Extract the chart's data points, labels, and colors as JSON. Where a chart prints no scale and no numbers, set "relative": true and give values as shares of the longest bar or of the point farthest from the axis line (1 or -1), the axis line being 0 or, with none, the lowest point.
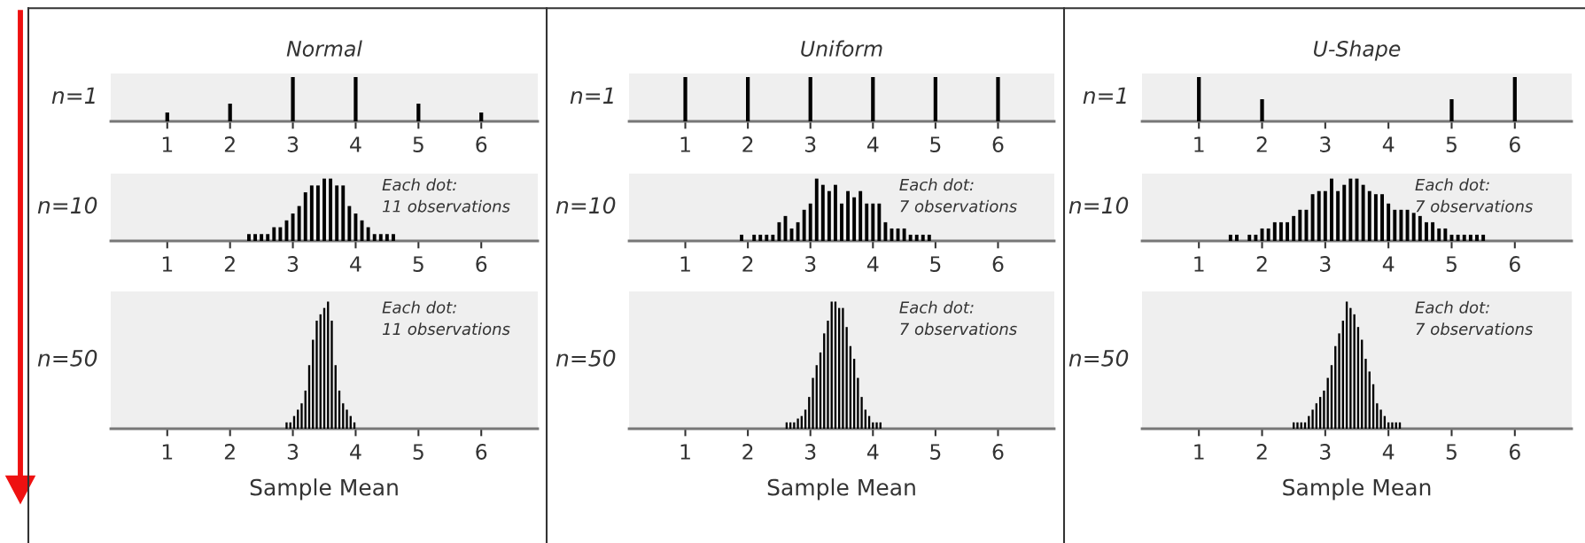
{
  "chart_data": [
    {
      "type": "bar",
      "title": "Normal",
      "ylabel": "n=1",
      "relative": true,
      "color": "#000000",
      "xlim": [
        0.1,
        6.9
      ],
      "xticks": [
        1,
        2,
        3,
        4,
        5,
        6
      ],
      "x": [
        1,
        2,
        3,
        4,
        5,
        6
      ],
      "values": [
        0.2,
        0.4,
        1,
        1,
        0.4,
        0.2
      ]
    },
    {
      "type": "bar",
      "title": "Uniform",
      "ylabel": "n=1",
      "relative": true,
      "color": "#000000",
      "xlim": [
        0.1,
        6.9
      ],
      "xticks": [
        1,
        2,
        3,
        4,
        5,
        6
      ],
      "x": [
        1,
        2,
        3,
        4,
        5,
        6
      ],
      "values": [
        1,
        1,
        1,
        1,
        1,
        1
      ]
    },
    {
      "type": "bar",
      "title": "U-Shape",
      "ylabel": "n=1",
      "relative": true,
      "color": "#000000",
      "xlim": [
        0.1,
        6.9
      ],
      "xticks": [
        1,
        2,
        3,
        4,
        5,
        6
      ],
      "x": [
        1,
        2,
        3,
        4,
        5,
        6
      ],
      "values": [
        1,
        0.5,
        0,
        0,
        0.5,
        1
      ]
    },
    {
      "type": "bar",
      "ylabel": "n=10",
      "relative": true,
      "color": "#000000",
      "xlim": [
        0.1,
        6.9
      ],
      "xticks": [
        1,
        2,
        3,
        4,
        5,
        6
      ],
      "annotations": [
        "Each dot:\n11 observations"
      ],
      "x": [
        2.3,
        2.4,
        2.5,
        2.6,
        2.7,
        2.8,
        2.9,
        3.0,
        3.1,
        3.2,
        3.3,
        3.4,
        3.5,
        3.6,
        3.7,
        3.8,
        3.9,
        4.0,
        4.1,
        4.2,
        4.3,
        4.4,
        4.5,
        4.6
      ],
      "values": [
        0.11,
        0.11,
        0.11,
        0.11,
        0.22,
        0.22,
        0.33,
        0.44,
        0.56,
        0.78,
        0.89,
        0.89,
        1,
        1,
        0.89,
        0.89,
        0.56,
        0.44,
        0.33,
        0.22,
        0.11,
        0.11,
        0.11,
        0.11
      ]
    },
    {
      "type": "bar",
      "ylabel": "n=10",
      "relative": true,
      "color": "#000000",
      "xlim": [
        0.1,
        6.9
      ],
      "xticks": [
        1,
        2,
        3,
        4,
        5,
        6
      ],
      "annotations": [
        "Each dot:\n7 observations"
      ],
      "x": [
        1.9,
        2.1,
        2.2,
        2.3,
        2.4,
        2.5,
        2.6,
        2.7,
        2.8,
        2.9,
        3.0,
        3.1,
        3.2,
        3.3,
        3.4,
        3.5,
        3.6,
        3.7,
        3.8,
        3.9,
        4.0,
        4.1,
        4.2,
        4.3,
        4.4,
        4.5,
        4.6,
        4.7,
        4.8,
        4.9
      ],
      "values": [
        0.1,
        0.1,
        0.1,
        0.1,
        0.1,
        0.3,
        0.4,
        0.2,
        0.3,
        0.5,
        0.6,
        1.0,
        0.9,
        0.8,
        0.9,
        0.6,
        0.8,
        0.7,
        0.8,
        0.6,
        0.6,
        0.6,
        0.3,
        0.2,
        0.2,
        0.2,
        0.1,
        0.1,
        0.1,
        0.1
      ]
    },
    {
      "type": "bar",
      "ylabel": "n=10",
      "relative": true,
      "color": "#000000",
      "xlim": [
        0.1,
        6.9
      ],
      "xticks": [
        1,
        2,
        3,
        4,
        5,
        6
      ],
      "annotations": [
        "Each dot:\n7 observations"
      ],
      "x": [
        1.5,
        1.6,
        1.8,
        1.9,
        2.0,
        2.1,
        2.2,
        2.3,
        2.4,
        2.5,
        2.6,
        2.7,
        2.8,
        2.9,
        3.0,
        3.1,
        3.2,
        3.3,
        3.4,
        3.5,
        3.6,
        3.7,
        3.8,
        3.9,
        4.0,
        4.1,
        4.2,
        4.3,
        4.4,
        4.5,
        4.6,
        4.7,
        4.8,
        4.9,
        5.0,
        5.1,
        5.2,
        5.3,
        5.4,
        5.5
      ],
      "values": [
        0.1,
        0.1,
        0.1,
        0.1,
        0.2,
        0.2,
        0.3,
        0.3,
        0.3,
        0.4,
        0.5,
        0.5,
        0.75,
        0.8,
        0.8,
        1.0,
        0.8,
        0.9,
        1.0,
        1.0,
        0.9,
        0.8,
        0.75,
        0.75,
        0.6,
        0.5,
        0.5,
        0.5,
        0.45,
        0.4,
        0.3,
        0.3,
        0.2,
        0.2,
        0.1,
        0.1,
        0.1,
        0.1,
        0.1,
        0.1
      ]
    },
    {
      "type": "bar",
      "ylabel": "n=50",
      "xlabel": "Sample Mean",
      "relative": true,
      "color": "#000000",
      "xlim": [
        0.1,
        6.9
      ],
      "xticks": [
        1,
        2,
        3,
        4,
        5,
        6
      ],
      "annotations": [
        "Each dot:\n11 observations"
      ],
      "x": [
        2.9,
        2.96,
        3.02,
        3.08,
        3.14,
        3.2,
        3.26,
        3.32,
        3.38,
        3.44,
        3.5,
        3.56,
        3.62,
        3.68,
        3.74,
        3.8,
        3.86,
        3.92,
        3.98
      ],
      "values": [
        0.05,
        0.05,
        0.1,
        0.15,
        0.2,
        0.3,
        0.5,
        0.7,
        0.85,
        0.9,
        0.95,
        1.0,
        0.85,
        0.5,
        0.3,
        0.2,
        0.15,
        0.1,
        0.05
      ]
    },
    {
      "type": "bar",
      "ylabel": "n=50",
      "xlabel": "Sample Mean",
      "relative": true,
      "color": "#000000",
      "xlim": [
        0.1,
        6.9
      ],
      "xticks": [
        1,
        2,
        3,
        4,
        5,
        6
      ],
      "annotations": [
        "Each dot:\n7 observations"
      ],
      "x": [
        2.62,
        2.68,
        2.74,
        2.8,
        2.86,
        2.92,
        2.98,
        3.04,
        3.1,
        3.16,
        3.22,
        3.28,
        3.34,
        3.4,
        3.46,
        3.52,
        3.58,
        3.64,
        3.7,
        3.76,
        3.82,
        3.88,
        3.94,
        4.0,
        4.06,
        4.12
      ],
      "values": [
        0.05,
        0.05,
        0.05,
        0.08,
        0.1,
        0.15,
        0.25,
        0.4,
        0.5,
        0.6,
        0.75,
        0.85,
        1.0,
        1.0,
        0.95,
        0.95,
        0.8,
        0.65,
        0.55,
        0.4,
        0.25,
        0.15,
        0.1,
        0.05,
        0.05,
        0.05
      ]
    },
    {
      "type": "bar",
      "ylabel": "n=50",
      "xlabel": "Sample Mean",
      "relative": true,
      "color": "#000000",
      "xlim": [
        0.1,
        6.9
      ],
      "xticks": [
        1,
        2,
        3,
        4,
        5,
        6
      ],
      "annotations": [
        "Each dot:\n7 observations"
      ],
      "x": [
        2.5,
        2.56,
        2.62,
        2.68,
        2.74,
        2.8,
        2.86,
        2.92,
        2.98,
        3.04,
        3.1,
        3.16,
        3.22,
        3.28,
        3.34,
        3.4,
        3.46,
        3.52,
        3.58,
        3.64,
        3.7,
        3.76,
        3.82,
        3.88,
        3.94,
        4.0,
        4.06,
        4.12,
        4.18
      ],
      "values": [
        0.05,
        0.05,
        0.05,
        0.05,
        0.1,
        0.15,
        0.2,
        0.25,
        0.3,
        0.4,
        0.5,
        0.65,
        0.75,
        0.85,
        1.0,
        0.95,
        0.9,
        0.8,
        0.7,
        0.55,
        0.45,
        0.35,
        0.2,
        0.15,
        0.1,
        0.05,
        0.05,
        0.05,
        0.05
      ]
    }
  ]
}
